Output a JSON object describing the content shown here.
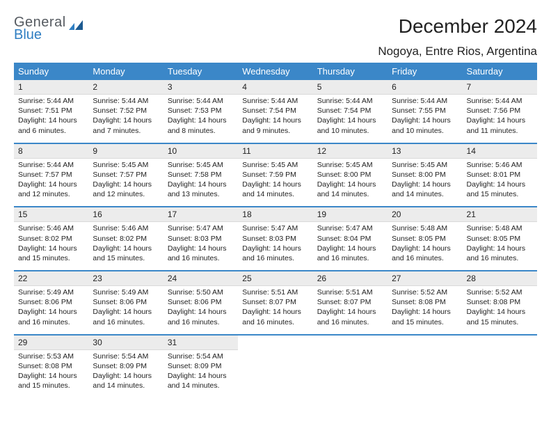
{
  "logo": {
    "wordA": "General",
    "wordB": "Blue"
  },
  "title": "December 2024",
  "location": "Nogoya, Entre Rios, Argentina",
  "colors": {
    "header_bg": "#3b87c8",
    "daynum_bg": "#ececec",
    "sep": "#3b87c8",
    "text": "#222222",
    "logo_gray": "#555a60",
    "logo_blue": "#2f7ec2"
  },
  "dow": [
    "Sunday",
    "Monday",
    "Tuesday",
    "Wednesday",
    "Thursday",
    "Friday",
    "Saturday"
  ],
  "weeks": [
    {
      "days": [
        {
          "n": "1",
          "sr": "Sunrise: 5:44 AM",
          "ss": "Sunset: 7:51 PM",
          "dl": "Daylight: 14 hours and 6 minutes."
        },
        {
          "n": "2",
          "sr": "Sunrise: 5:44 AM",
          "ss": "Sunset: 7:52 PM",
          "dl": "Daylight: 14 hours and 7 minutes."
        },
        {
          "n": "3",
          "sr": "Sunrise: 5:44 AM",
          "ss": "Sunset: 7:53 PM",
          "dl": "Daylight: 14 hours and 8 minutes."
        },
        {
          "n": "4",
          "sr": "Sunrise: 5:44 AM",
          "ss": "Sunset: 7:54 PM",
          "dl": "Daylight: 14 hours and 9 minutes."
        },
        {
          "n": "5",
          "sr": "Sunrise: 5:44 AM",
          "ss": "Sunset: 7:54 PM",
          "dl": "Daylight: 14 hours and 10 minutes."
        },
        {
          "n": "6",
          "sr": "Sunrise: 5:44 AM",
          "ss": "Sunset: 7:55 PM",
          "dl": "Daylight: 14 hours and 10 minutes."
        },
        {
          "n": "7",
          "sr": "Sunrise: 5:44 AM",
          "ss": "Sunset: 7:56 PM",
          "dl": "Daylight: 14 hours and 11 minutes."
        }
      ]
    },
    {
      "days": [
        {
          "n": "8",
          "sr": "Sunrise: 5:44 AM",
          "ss": "Sunset: 7:57 PM",
          "dl": "Daylight: 14 hours and 12 minutes."
        },
        {
          "n": "9",
          "sr": "Sunrise: 5:45 AM",
          "ss": "Sunset: 7:57 PM",
          "dl": "Daylight: 14 hours and 12 minutes."
        },
        {
          "n": "10",
          "sr": "Sunrise: 5:45 AM",
          "ss": "Sunset: 7:58 PM",
          "dl": "Daylight: 14 hours and 13 minutes."
        },
        {
          "n": "11",
          "sr": "Sunrise: 5:45 AM",
          "ss": "Sunset: 7:59 PM",
          "dl": "Daylight: 14 hours and 14 minutes."
        },
        {
          "n": "12",
          "sr": "Sunrise: 5:45 AM",
          "ss": "Sunset: 8:00 PM",
          "dl": "Daylight: 14 hours and 14 minutes."
        },
        {
          "n": "13",
          "sr": "Sunrise: 5:45 AM",
          "ss": "Sunset: 8:00 PM",
          "dl": "Daylight: 14 hours and 14 minutes."
        },
        {
          "n": "14",
          "sr": "Sunrise: 5:46 AM",
          "ss": "Sunset: 8:01 PM",
          "dl": "Daylight: 14 hours and 15 minutes."
        }
      ]
    },
    {
      "days": [
        {
          "n": "15",
          "sr": "Sunrise: 5:46 AM",
          "ss": "Sunset: 8:02 PM",
          "dl": "Daylight: 14 hours and 15 minutes."
        },
        {
          "n": "16",
          "sr": "Sunrise: 5:46 AM",
          "ss": "Sunset: 8:02 PM",
          "dl": "Daylight: 14 hours and 15 minutes."
        },
        {
          "n": "17",
          "sr": "Sunrise: 5:47 AM",
          "ss": "Sunset: 8:03 PM",
          "dl": "Daylight: 14 hours and 16 minutes."
        },
        {
          "n": "18",
          "sr": "Sunrise: 5:47 AM",
          "ss": "Sunset: 8:03 PM",
          "dl": "Daylight: 14 hours and 16 minutes."
        },
        {
          "n": "19",
          "sr": "Sunrise: 5:47 AM",
          "ss": "Sunset: 8:04 PM",
          "dl": "Daylight: 14 hours and 16 minutes."
        },
        {
          "n": "20",
          "sr": "Sunrise: 5:48 AM",
          "ss": "Sunset: 8:05 PM",
          "dl": "Daylight: 14 hours and 16 minutes."
        },
        {
          "n": "21",
          "sr": "Sunrise: 5:48 AM",
          "ss": "Sunset: 8:05 PM",
          "dl": "Daylight: 14 hours and 16 minutes."
        }
      ]
    },
    {
      "days": [
        {
          "n": "22",
          "sr": "Sunrise: 5:49 AM",
          "ss": "Sunset: 8:06 PM",
          "dl": "Daylight: 14 hours and 16 minutes."
        },
        {
          "n": "23",
          "sr": "Sunrise: 5:49 AM",
          "ss": "Sunset: 8:06 PM",
          "dl": "Daylight: 14 hours and 16 minutes."
        },
        {
          "n": "24",
          "sr": "Sunrise: 5:50 AM",
          "ss": "Sunset: 8:06 PM",
          "dl": "Daylight: 14 hours and 16 minutes."
        },
        {
          "n": "25",
          "sr": "Sunrise: 5:51 AM",
          "ss": "Sunset: 8:07 PM",
          "dl": "Daylight: 14 hours and 16 minutes."
        },
        {
          "n": "26",
          "sr": "Sunrise: 5:51 AM",
          "ss": "Sunset: 8:07 PM",
          "dl": "Daylight: 14 hours and 16 minutes."
        },
        {
          "n": "27",
          "sr": "Sunrise: 5:52 AM",
          "ss": "Sunset: 8:08 PM",
          "dl": "Daylight: 14 hours and 15 minutes."
        },
        {
          "n": "28",
          "sr": "Sunrise: 5:52 AM",
          "ss": "Sunset: 8:08 PM",
          "dl": "Daylight: 14 hours and 15 minutes."
        }
      ]
    },
    {
      "days": [
        {
          "n": "29",
          "sr": "Sunrise: 5:53 AM",
          "ss": "Sunset: 8:08 PM",
          "dl": "Daylight: 14 hours and 15 minutes."
        },
        {
          "n": "30",
          "sr": "Sunrise: 5:54 AM",
          "ss": "Sunset: 8:09 PM",
          "dl": "Daylight: 14 hours and 14 minutes."
        },
        {
          "n": "31",
          "sr": "Sunrise: 5:54 AM",
          "ss": "Sunset: 8:09 PM",
          "dl": "Daylight: 14 hours and 14 minutes."
        },
        {
          "n": "",
          "sr": "",
          "ss": "",
          "dl": ""
        },
        {
          "n": "",
          "sr": "",
          "ss": "",
          "dl": ""
        },
        {
          "n": "",
          "sr": "",
          "ss": "",
          "dl": ""
        },
        {
          "n": "",
          "sr": "",
          "ss": "",
          "dl": ""
        }
      ]
    }
  ]
}
